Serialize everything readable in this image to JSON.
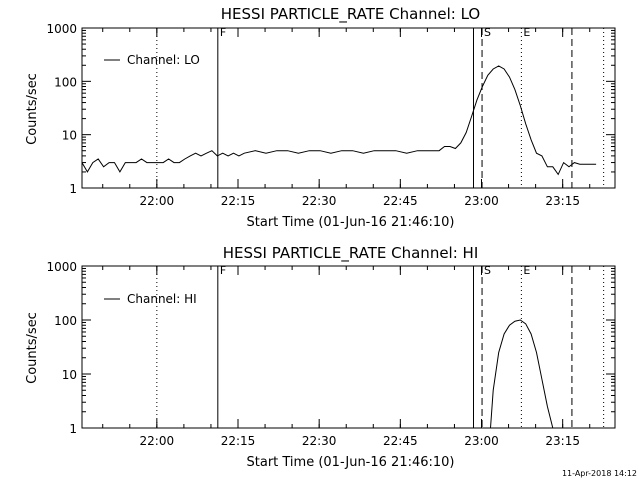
{
  "footer": {
    "timestamp": "11-Apr-2018 14:12"
  },
  "chart_data": [
    {
      "type": "line",
      "title": "HESSI PARTICLE_RATE Channel: LO",
      "xlabel": "Start Time (01-Jun-16 21:46:10)",
      "ylabel": "Counts/sec",
      "x_units": "minutes after 21:46:10",
      "xlim": [
        0,
        98.5
      ],
      "ylim": [
        1,
        1000
      ],
      "yscale": "log",
      "x_ticks": [
        {
          "label": "22:00",
          "value": 13.83
        },
        {
          "label": "22:15",
          "value": 28.83
        },
        {
          "label": "22:30",
          "value": 43.83
        },
        {
          "label": "22:45",
          "value": 58.83
        },
        {
          "label": "23:00",
          "value": 73.83
        },
        {
          "label": "23:15",
          "value": 88.83
        }
      ],
      "y_ticks": [
        {
          "label": "1",
          "value": 1
        },
        {
          "label": "10",
          "value": 10
        },
        {
          "label": "100",
          "value": 100
        },
        {
          "label": "1000",
          "value": 1000
        }
      ],
      "legend": {
        "placement": "top-left",
        "entries": [
          "Channel: LO"
        ]
      },
      "series": [
        {
          "name": "Channel: LO",
          "color": "#000000",
          "x": [
            0,
            1,
            2,
            3,
            4,
            5,
            6,
            7,
            8,
            9,
            10,
            11,
            12,
            13,
            14,
            15,
            16,
            17,
            18,
            19,
            20,
            21,
            22,
            23,
            24,
            25,
            26,
            27,
            28,
            29,
            30,
            32,
            34,
            36,
            38,
            40,
            42,
            44,
            46,
            48,
            50,
            52,
            54,
            56,
            58,
            60,
            62,
            64,
            66,
            67,
            68,
            69,
            70,
            71,
            72,
            73,
            74,
            75,
            76,
            77,
            78,
            79,
            80,
            81,
            82,
            83,
            84,
            85,
            86,
            87,
            88,
            89,
            90,
            91,
            92,
            95
          ],
          "y": [
            3,
            2,
            3,
            3.5,
            2.5,
            3,
            3,
            2,
            3,
            3,
            3,
            3.5,
            3,
            3,
            3,
            3,
            3.5,
            3,
            3,
            3.5,
            4,
            4.5,
            4,
            4.5,
            5,
            4,
            4.5,
            4,
            4.5,
            4,
            4.5,
            5,
            4.5,
            5,
            5,
            4.5,
            5,
            5,
            4.5,
            5,
            5,
            4.5,
            5,
            5,
            5,
            4.5,
            5,
            5,
            5,
            6,
            6,
            5.5,
            7,
            11,
            22,
            45,
            80,
            130,
            170,
            195,
            170,
            120,
            70,
            35,
            16,
            8,
            4.5,
            4,
            2.5,
            2.5,
            1.8,
            3,
            2.5,
            3,
            2.8,
            2.8
          ]
        }
      ],
      "vlines": [
        {
          "label": "",
          "value": 13.83,
          "style": "dotted"
        },
        {
          "label": "F",
          "value": 25.1,
          "style": "solid"
        },
        {
          "label": "",
          "value": 72.35,
          "style": "solid"
        },
        {
          "label": "S",
          "value": 73.93,
          "style": "dashed"
        },
        {
          "label": "E",
          "value": 81.2,
          "style": "dotted"
        },
        {
          "label": "",
          "value": 90.54,
          "style": "dashed"
        },
        {
          "label": "",
          "value": 96.4,
          "style": "dotted"
        }
      ]
    },
    {
      "type": "line",
      "title": "HESSI PARTICLE_RATE Channel: HI",
      "xlabel": "Start Time (01-Jun-16 21:46:10)",
      "ylabel": "Counts/sec",
      "x_units": "minutes after 21:46:10",
      "xlim": [
        0,
        98.5
      ],
      "ylim": [
        1,
        1000
      ],
      "yscale": "log",
      "x_ticks": [
        {
          "label": "22:00",
          "value": 13.83
        },
        {
          "label": "22:15",
          "value": 28.83
        },
        {
          "label": "22:30",
          "value": 43.83
        },
        {
          "label": "22:45",
          "value": 58.83
        },
        {
          "label": "23:00",
          "value": 73.83
        },
        {
          "label": "23:15",
          "value": 88.83
        }
      ],
      "y_ticks": [
        {
          "label": "1",
          "value": 1
        },
        {
          "label": "10",
          "value": 10
        },
        {
          "label": "100",
          "value": 100
        },
        {
          "label": "1000",
          "value": 1000
        }
      ],
      "legend": {
        "placement": "top-left",
        "entries": [
          "Channel: HI"
        ]
      },
      "series": [
        {
          "name": "Channel: HI",
          "color": "#000000",
          "x": [
            75.5,
            76,
            77,
            78,
            79,
            80,
            81,
            82,
            83,
            84,
            85,
            86,
            87
          ],
          "y": [
            1,
            5,
            25,
            55,
            80,
            95,
            100,
            85,
            55,
            25,
            8,
            2.5,
            1
          ]
        }
      ],
      "vlines": [
        {
          "label": "",
          "value": 13.83,
          "style": "dotted"
        },
        {
          "label": "F",
          "value": 25.1,
          "style": "solid"
        },
        {
          "label": "",
          "value": 72.35,
          "style": "solid"
        },
        {
          "label": "S",
          "value": 73.93,
          "style": "dashed"
        },
        {
          "label": "E",
          "value": 81.2,
          "style": "dotted"
        },
        {
          "label": "",
          "value": 90.54,
          "style": "dashed"
        },
        {
          "label": "",
          "value": 96.4,
          "style": "dotted"
        }
      ]
    }
  ]
}
